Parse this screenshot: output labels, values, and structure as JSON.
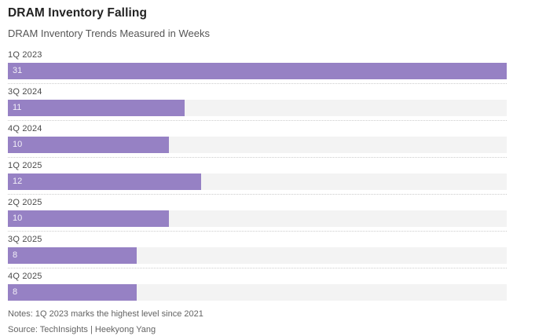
{
  "header": {
    "title": "DRAM Inventory Falling",
    "subtitle": "DRAM Inventory Trends Measured in Weeks"
  },
  "chart_data": {
    "type": "bar",
    "orientation": "horizontal",
    "title": "DRAM Inventory Falling",
    "subtitle": "DRAM Inventory Trends Measured in Weeks",
    "categories": [
      "1Q 2023",
      "3Q 2024",
      "4Q 2024",
      "1Q 2025",
      "2Q 2025",
      "3Q 2025",
      "4Q 2025"
    ],
    "values": [
      31,
      11,
      10,
      12,
      10,
      8,
      8
    ],
    "xlabel": "",
    "ylabel": "",
    "xlim": [
      0,
      31
    ],
    "grid": false,
    "legend": false,
    "value_labels": "inside-left"
  },
  "footer": {
    "notes": "Notes: 1Q 2023 marks the highest level since 2021",
    "source": "Source: TechInsights | Heekyong Yang"
  },
  "colors": {
    "bar": "#9681c4",
    "track": "#f3f3f3",
    "separator": "#cccccc",
    "category_label": "#4a4a4a",
    "title": "#232323",
    "muted_text": "#636363"
  }
}
